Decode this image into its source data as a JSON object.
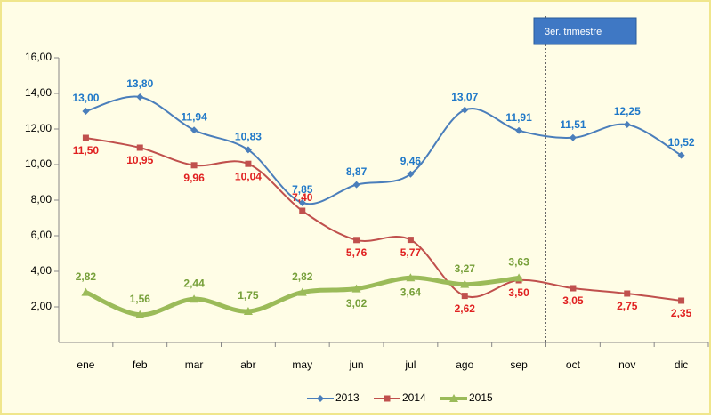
{
  "chart_data": {
    "type": "line",
    "categories": [
      "ene",
      "feb",
      "mar",
      "abr",
      "may",
      "jun",
      "jul",
      "ago",
      "sep",
      "oct",
      "nov",
      "dic"
    ],
    "series": [
      {
        "name": "2013",
        "color": "#4a7ebb",
        "label_color": "#1f78c8",
        "marker": "diamond",
        "values": [
          13.0,
          13.8,
          11.94,
          10.83,
          7.85,
          8.87,
          9.46,
          13.07,
          11.91,
          11.51,
          12.25,
          10.52
        ],
        "value_labels": [
          "13,00",
          "13,80",
          "11,94",
          "10,83",
          "7,85",
          "8,87",
          "9,46",
          "13,07",
          "11,91",
          "11,51",
          "12,25",
          "10,52"
        ]
      },
      {
        "name": "2014",
        "color": "#c0504d",
        "label_color": "#e02020",
        "marker": "square",
        "values": [
          11.5,
          10.95,
          9.96,
          10.04,
          7.4,
          5.76,
          5.77,
          2.62,
          3.5,
          3.05,
          2.75,
          2.35
        ],
        "value_labels": [
          "11,50",
          "10,95",
          "9,96",
          "10,04",
          "7,40",
          "5,76",
          "5,77",
          "2,62",
          "3,50",
          "3,05",
          "2,75",
          "2,35"
        ]
      },
      {
        "name": "2015",
        "color": "#9bbb59",
        "label_color": "#77a03a",
        "marker": "triangle",
        "values": [
          2.82,
          1.56,
          2.44,
          1.75,
          2.82,
          3.02,
          3.64,
          3.27,
          3.63,
          null,
          null,
          null
        ],
        "value_labels": [
          "2,82",
          "1,56",
          "2,44",
          "1,75",
          "2,82",
          "3,02",
          "3,64",
          "3,27",
          "3,63",
          null,
          null,
          null
        ]
      }
    ],
    "ylim": [
      0,
      16
    ],
    "yticks": [
      {
        "value": 2,
        "label": "2,00"
      },
      {
        "value": 4,
        "label": "4,00"
      },
      {
        "value": 6,
        "label": "6,00"
      },
      {
        "value": 8,
        "label": "8,00"
      },
      {
        "value": 10,
        "label": "10,00"
      },
      {
        "value": 12,
        "label": "12,00"
      },
      {
        "value": 14,
        "label": "14,00"
      },
      {
        "value": 16,
        "label": "16,00"
      }
    ],
    "annotation": "3er. trimestre",
    "legend": "bottom"
  }
}
